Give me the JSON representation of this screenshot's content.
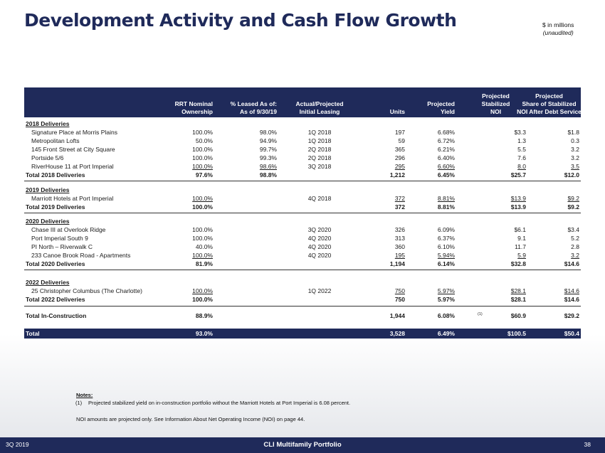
{
  "title": "Development Activity and Cash Flow Growth",
  "units_note": {
    "line1": "$ in millions",
    "line2": "(unaudited)"
  },
  "columns": {
    "ownership": [
      "RRT Nominal",
      "Ownership"
    ],
    "leased": [
      "% Leased As of:",
      "As of 9/30/19"
    ],
    "leasing": [
      "Actual/Projected",
      "Initial Leasing"
    ],
    "units": "Units",
    "yield": [
      "Projected",
      "Yield"
    ],
    "noi": [
      "Projected",
      "Stabilized",
      "NOI"
    ],
    "share": [
      "Projected",
      "Share of Stabilized",
      "NOI After Debt Service"
    ]
  },
  "sections": [
    {
      "heading": "2018 Deliveries",
      "rows": [
        [
          "Signature Place at Morris Plains",
          "100.0%",
          "98.0%",
          "1Q 2018",
          "197",
          "6.68%",
          "$3.3",
          "$1.8"
        ],
        [
          "Metropolitan Lofts",
          "50.0%",
          "94.9%",
          "1Q 2018",
          "59",
          "6.72%",
          "1.3",
          "0.3"
        ],
        [
          "145 Front Street at City Square",
          "100.0%",
          "99.7%",
          "2Q 2018",
          "365",
          "6.21%",
          "5.5",
          "3.2"
        ],
        [
          "Portside 5/6",
          "100.0%",
          "99.3%",
          "2Q 2018",
          "296",
          "6.40%",
          "7.6",
          "3.2"
        ],
        [
          "RiverHouse 11 at Port Imperial",
          "100.0%",
          "98.6%",
          "3Q 2018",
          "295",
          "6.60%",
          "8.0",
          "3.5"
        ]
      ],
      "total": [
        "Total 2018 Deliveries",
        "97.6%",
        "98.8%",
        "",
        "1,212",
        "6.45%",
        "$25.7",
        "$12.0"
      ]
    },
    {
      "heading": "2019 Deliveries",
      "rows": [
        [
          "Marriott Hotels at Port Imperial",
          "100.0%",
          "",
          "4Q 2018",
          "372",
          "8.81%",
          "$13.9",
          "$9.2"
        ]
      ],
      "total": [
        "Total 2019 Deliveries",
        "100.0%",
        "",
        "",
        "372",
        "8.81%",
        "$13.9",
        "$9.2"
      ]
    },
    {
      "heading": "2020 Deliveries",
      "rows": [
        [
          "Chase III at Overlook Ridge",
          "100.0%",
          "",
          "3Q 2020",
          "326",
          "6.09%",
          "$6.1",
          "$3.4"
        ],
        [
          "Port Imperial South 9",
          "100.0%",
          "",
          "4Q 2020",
          "313",
          "6.37%",
          "9.1",
          "5.2"
        ],
        [
          "PI North – Riverwalk C",
          "40.0%",
          "",
          "4Q 2020",
          "360",
          "6.10%",
          "11.7",
          "2.8"
        ],
        [
          "233 Canoe Brook Road - Apartments",
          "100.0%",
          "",
          "4Q 2020",
          "195",
          "5.94%",
          "5.9",
          "3.2"
        ]
      ],
      "total": [
        "Total 2020 Deliveries",
        "81.9%",
        "",
        "",
        "1,194",
        "6.14%",
        "$32.8",
        "$14.6"
      ]
    },
    {
      "heading": "2022 Deliveries",
      "rows": [
        [
          "25 Christopher Columbus (The Charlotte)",
          "100.0%",
          "",
          "1Q 2022",
          "750",
          "5.97%",
          "$28.1",
          "$14.6"
        ]
      ],
      "total": [
        "Total 2022 Deliveries",
        "100.0%",
        "",
        "",
        "750",
        "5.97%",
        "$28.1",
        "$14.6"
      ]
    }
  ],
  "in_construction": [
    "Total In-Construction",
    "88.9%",
    "",
    "",
    "1,944",
    "6.08%",
    "$60.9",
    "$29.2"
  ],
  "in_construction_fn": "(1)",
  "grand_total": [
    "Total",
    "93.0%",
    "",
    "",
    "3,528",
    "6.49%",
    "$100.5",
    "$50.4"
  ],
  "notes": {
    "heading": "Notes:",
    "n1_mark": "(1)",
    "n1": "Projected stabilized yield on in-construction portfolio without the Marriott Hotels at Port Imperial is 6.08 percent.",
    "n2": "NOI amounts are projected only. See Information About Net Operating Income (NOI) on page 44."
  },
  "footer": {
    "quarter": "3Q 2019",
    "title": "CLI Multifamily Portfolio",
    "page": "38"
  }
}
